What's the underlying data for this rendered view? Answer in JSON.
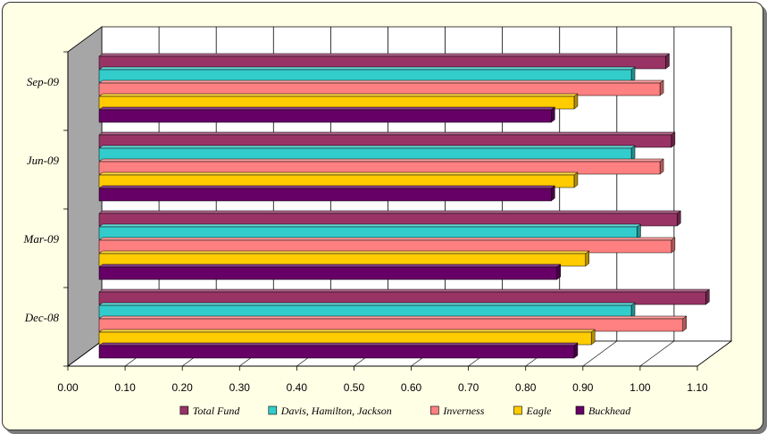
{
  "chart_data": {
    "type": "bar",
    "orientation": "horizontal",
    "style": "3d",
    "categories": [
      "Dec-08",
      "Mar-09",
      "Jun-09",
      "Sep-09"
    ],
    "series": [
      {
        "name": "Total Fund",
        "color": "#993366",
        "values": [
          1.06,
          1.01,
          1.0,
          0.99
        ]
      },
      {
        "name": "Davis, Hamilton, Jackson",
        "color": "#33cccc",
        "values": [
          0.93,
          0.94,
          0.93,
          0.93
        ]
      },
      {
        "name": "Inverness",
        "color": "#ff8080",
        "values": [
          1.02,
          1.0,
          0.98,
          0.98
        ]
      },
      {
        "name": "Eagle",
        "color": "#ffcc00",
        "values": [
          0.86,
          0.85,
          0.83,
          0.83
        ]
      },
      {
        "name": "Buckhead",
        "color": "#660066",
        "values": [
          0.83,
          0.8,
          0.79,
          0.79
        ]
      }
    ],
    "x_ticks": [
      "0.00",
      "0.10",
      "0.20",
      "0.30",
      "0.40",
      "0.50",
      "0.60",
      "0.70",
      "0.80",
      "0.90",
      "1.00",
      "1.10"
    ],
    "xlim": [
      0,
      1.1
    ],
    "grid": true,
    "legend_position": "bottom",
    "title": "",
    "xlabel": "",
    "ylabel": ""
  }
}
